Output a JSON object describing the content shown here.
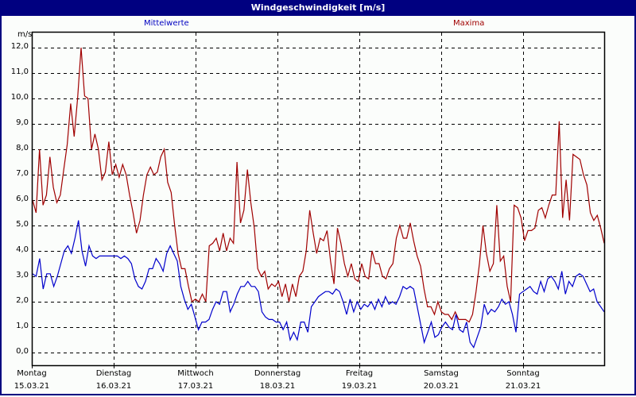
{
  "window": {
    "title": "Windgeschwindigkeit [m/s]",
    "background": "#fbfdfb",
    "titlebar_color": "#000080"
  },
  "legend": {
    "mean_label": "Mittelwerte",
    "max_label": "Maxima",
    "mean_color": "#0000cc",
    "max_color": "#a00000"
  },
  "axis": {
    "unit": "m/s",
    "y_ticks": [
      "12,0",
      "11,0",
      "10,0",
      "9,0",
      "8,0",
      "7,0",
      "6,0",
      "5,0",
      "4,0",
      "3,0",
      "2,0",
      "1,0",
      "0,0"
    ],
    "x_ticks": [
      {
        "day": "Montag",
        "date": "15.03.21"
      },
      {
        "day": "Dienstag",
        "date": "16.03.21"
      },
      {
        "day": "Mittwoch",
        "date": "17.03.21"
      },
      {
        "day": "Donnerstag",
        "date": "18.03.21"
      },
      {
        "day": "Freitag",
        "date": "19.03.21"
      },
      {
        "day": "Samstag",
        "date": "20.03.21"
      },
      {
        "day": "Sonntag",
        "date": "21.03.21"
      }
    ]
  },
  "chart_data": {
    "type": "line",
    "title": "Windgeschwindigkeit [m/s]",
    "xlabel": "",
    "ylabel": "m/s",
    "ylim": [
      -0.5,
      12.5
    ],
    "xlim_days": [
      0,
      7
    ],
    "grid": true,
    "legend_position": "top",
    "categories": [
      "Montag 15.03.21",
      "Dienstag 16.03.21",
      "Mittwoch 17.03.21",
      "Donnerstag 18.03.21",
      "Freitag 19.03.21",
      "Samstag 20.03.21",
      "Sonntag 21.03.21"
    ],
    "series": [
      {
        "name": "Mittelwerte",
        "color": "#0000cc",
        "values": [
          3.1,
          3.0,
          3.7,
          2.5,
          3.1,
          3.1,
          2.6,
          3.0,
          3.5,
          4.0,
          4.2,
          3.9,
          4.5,
          5.2,
          4.0,
          3.4,
          4.2,
          3.8,
          3.7,
          3.8,
          3.8,
          3.8,
          3.8,
          3.8,
          3.8,
          3.7,
          3.8,
          3.7,
          3.5,
          2.9,
          2.6,
          2.5,
          2.8,
          3.3,
          3.3,
          3.7,
          3.5,
          3.2,
          3.9,
          4.2,
          3.9,
          3.6,
          2.6,
          2.1,
          1.7,
          1.9,
          1.4,
          0.9,
          1.2,
          1.2,
          1.3,
          1.7,
          2.0,
          1.9,
          2.4,
          2.4,
          1.6,
          1.9,
          2.3,
          2.6,
          2.6,
          2.8,
          2.6,
          2.6,
          2.4,
          1.6,
          1.4,
          1.3,
          1.3,
          1.2,
          1.2,
          0.9,
          1.2,
          0.5,
          0.8,
          0.5,
          1.2,
          1.2,
          0.8,
          1.8,
          2.0,
          2.2,
          2.3,
          2.4,
          2.4,
          2.3,
          2.5,
          2.4,
          2.0,
          1.5,
          2.1,
          1.6,
          2.0,
          1.7,
          1.9,
          1.8,
          2.0,
          1.7,
          2.1,
          1.8,
          2.2,
          1.9,
          2.0,
          1.9,
          2.2,
          2.6,
          2.5,
          2.6,
          2.5,
          1.8,
          1.1,
          0.4,
          0.8,
          1.2,
          0.6,
          0.7,
          1.0,
          1.2,
          1.0,
          0.9,
          1.5,
          0.9,
          0.8,
          1.2,
          0.4,
          0.2,
          0.6,
          1.0,
          1.9,
          1.5,
          1.7,
          1.6,
          1.8,
          2.1,
          1.9,
          2.0,
          1.5,
          0.8,
          2.3,
          2.4,
          2.5,
          2.6,
          2.4,
          2.3,
          2.8,
          2.4,
          2.9,
          3.0,
          2.8,
          2.5,
          3.2,
          2.3,
          2.8,
          2.6,
          3.0,
          3.1,
          3.0,
          2.7,
          2.4,
          2.5,
          2.0,
          1.8,
          1.6
        ]
      },
      {
        "name": "Maxima",
        "color": "#a00000",
        "values": [
          6.0,
          5.5,
          8.0,
          5.8,
          6.2,
          7.7,
          6.5,
          5.9,
          6.2,
          7.2,
          8.2,
          9.8,
          8.5,
          10.0,
          12.0,
          10.1,
          10.0,
          8.0,
          8.6,
          8.0,
          6.8,
          7.1,
          8.3,
          7.0,
          7.4,
          6.9,
          7.4,
          7.0,
          6.2,
          5.5,
          4.7,
          5.2,
          6.2,
          7.0,
          7.3,
          7.0,
          7.1,
          7.7,
          8.0,
          6.7,
          6.3,
          5.0,
          3.9,
          3.3,
          3.3,
          2.6,
          2.0,
          2.1,
          2.0,
          2.3,
          2.0,
          4.2,
          4.3,
          4.5,
          4.0,
          4.7,
          4.0,
          4.5,
          4.3,
          7.5,
          5.1,
          5.6,
          7.2,
          5.9,
          4.9,
          3.3,
          3.0,
          3.2,
          2.5,
          2.7,
          2.6,
          2.8,
          2.2,
          2.7,
          2.0,
          2.7,
          2.2,
          3.0,
          3.2,
          4.0,
          5.6,
          4.7,
          3.9,
          4.5,
          4.4,
          4.8,
          3.6,
          2.7,
          4.9,
          4.3,
          3.5,
          3.0,
          3.5,
          2.9,
          2.8,
          3.5,
          3.0,
          2.9,
          4.0,
          3.5,
          3.5,
          3.0,
          2.9,
          3.3,
          3.5,
          4.5,
          5.0,
          4.5,
          4.5,
          5.1,
          4.4,
          3.8,
          3.4,
          2.5,
          1.8,
          1.8,
          1.5,
          2.0,
          1.6,
          1.5,
          1.5,
          1.3,
          1.6,
          1.3,
          1.3,
          1.3,
          1.2,
          1.5,
          2.4,
          3.5,
          5.0,
          3.9,
          3.2,
          3.5,
          5.8,
          3.6,
          3.8,
          2.6,
          2.0,
          5.8,
          5.7,
          5.3,
          4.4,
          4.8,
          4.8,
          4.9,
          5.6,
          5.7,
          5.3,
          5.8,
          6.2,
          6.2,
          9.1,
          5.3,
          6.8,
          5.2,
          7.8,
          7.7,
          7.6,
          7.0,
          6.6,
          5.5,
          5.2,
          5.4,
          4.9,
          4.3
        ]
      }
    ]
  }
}
